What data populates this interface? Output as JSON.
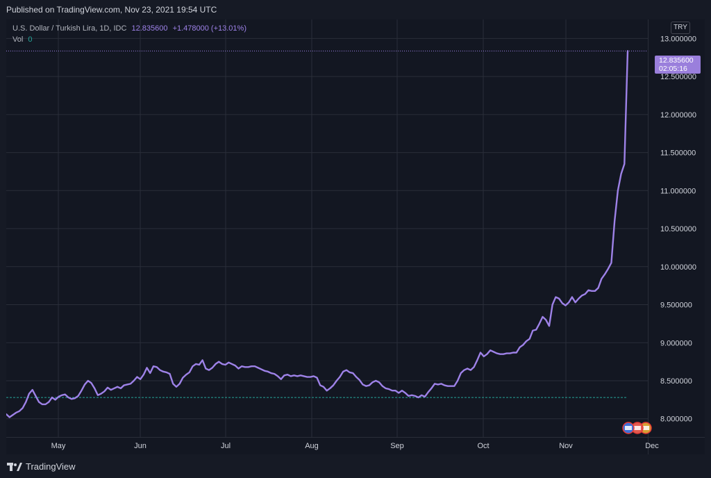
{
  "header": {
    "published_text": "Published on TradingView.com, Nov 23, 2021 19:54 UTC"
  },
  "legend": {
    "symbol": "U.S. Dollar / Turkish Lira, 1D, IDC",
    "last_price": "12.835600",
    "change": "+1.478000 (+13.01%)",
    "vol_label": "Vol",
    "vol_value": "0"
  },
  "currency_button": "TRY",
  "price_tag": {
    "price": "12.835600",
    "countdown": "02:05:16"
  },
  "footer": {
    "brand": "TradingView"
  },
  "colors": {
    "line": "#9e82e8",
    "grid": "#2a2e39",
    "axis_text": "#d1d4dc",
    "background": "#131722",
    "baseline": "#26a69a"
  },
  "chart_data": {
    "type": "line",
    "series": [
      {
        "values": [
          8.06,
          8.02,
          8.05,
          8.08,
          8.1,
          8.14,
          8.22,
          8.33,
          8.38,
          8.3,
          8.22,
          8.19,
          8.19,
          8.22,
          8.28,
          8.25,
          8.29,
          8.31,
          8.32,
          8.28,
          8.26,
          8.27,
          8.3,
          8.37,
          8.45,
          8.5,
          8.47,
          8.4,
          8.31,
          8.33,
          8.36,
          8.41,
          8.38,
          8.4,
          8.42,
          8.4,
          8.44,
          8.45,
          8.46,
          8.5,
          8.55,
          8.52,
          8.58,
          8.67,
          8.6,
          8.69,
          8.68,
          8.64,
          8.62,
          8.61,
          8.59,
          8.46,
          8.42,
          8.46,
          8.54,
          8.58,
          8.61,
          8.69,
          8.72,
          8.71,
          8.77,
          8.66,
          8.64,
          8.67,
          8.72,
          8.75,
          8.72,
          8.71,
          8.74,
          8.72,
          8.7,
          8.66,
          8.69,
          8.68,
          8.68,
          8.69,
          8.69,
          8.67,
          8.65,
          8.63,
          8.62,
          8.6,
          8.59,
          8.56,
          8.52,
          8.57,
          8.58,
          8.56,
          8.57,
          8.56,
          8.57,
          8.56,
          8.55,
          8.55,
          8.56,
          8.54,
          8.44,
          8.42,
          8.37,
          8.4,
          8.44,
          8.5,
          8.55,
          8.62,
          8.64,
          8.61,
          8.6,
          8.55,
          8.51,
          8.45,
          8.43,
          8.44,
          8.48,
          8.5,
          8.48,
          8.43,
          8.4,
          8.39,
          8.37,
          8.37,
          8.34,
          8.37,
          8.34,
          8.3,
          8.31,
          8.3,
          8.28,
          8.31,
          8.29,
          8.35,
          8.4,
          8.46,
          8.45,
          8.46,
          8.44,
          8.43,
          8.43,
          8.43,
          8.5,
          8.6,
          8.64,
          8.66,
          8.64,
          8.68,
          8.77,
          8.87,
          8.82,
          8.85,
          8.9,
          8.88,
          8.86,
          8.85,
          8.85,
          8.86,
          8.86,
          8.87,
          8.87,
          8.94,
          8.97,
          9.02,
          9.05,
          9.16,
          9.17,
          9.25,
          9.34,
          9.3,
          9.22,
          9.5,
          9.6,
          9.58,
          9.52,
          9.49,
          9.53,
          9.6,
          9.53,
          9.58,
          9.62,
          9.64,
          9.69,
          9.68,
          9.68,
          9.72,
          9.84,
          9.9,
          9.97,
          10.05,
          10.6,
          11.0,
          11.22,
          11.35,
          12.8356
        ]
      }
    ],
    "x_ticks": [
      "May",
      "Jun",
      "Jul",
      "Aug",
      "Sep",
      "Oct",
      "Nov",
      "Dec"
    ],
    "y_ticks": [
      "8.000000",
      "8.500000",
      "9.000000",
      "9.500000",
      "10.000000",
      "10.500000",
      "11.000000",
      "11.500000",
      "12.000000",
      "12.500000",
      "13.000000"
    ],
    "ylim": [
      7.76,
      13.25
    ],
    "reference_level": 8.28,
    "last_value": 12.8356,
    "grid": true
  }
}
